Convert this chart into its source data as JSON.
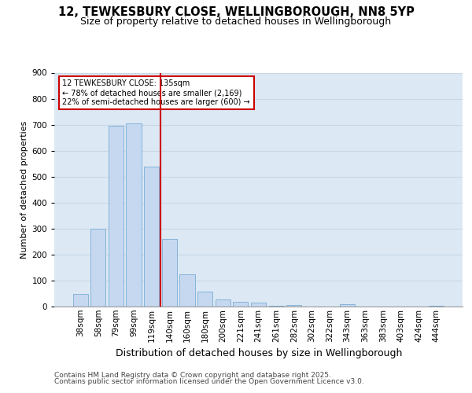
{
  "title_line1": "12, TEWKESBURY CLOSE, WELLINGBOROUGH, NN8 5YP",
  "title_line2": "Size of property relative to detached houses in Wellingborough",
  "xlabel": "Distribution of detached houses by size in Wellingborough",
  "ylabel": "Number of detached properties",
  "categories": [
    "38sqm",
    "58sqm",
    "79sqm",
    "99sqm",
    "119sqm",
    "140sqm",
    "160sqm",
    "180sqm",
    "200sqm",
    "221sqm",
    "241sqm",
    "261sqm",
    "282sqm",
    "302sqm",
    "322sqm",
    "343sqm",
    "363sqm",
    "383sqm",
    "403sqm",
    "424sqm",
    "444sqm"
  ],
  "values": [
    47,
    300,
    695,
    705,
    537,
    260,
    125,
    57,
    27,
    17,
    15,
    2,
    5,
    0,
    0,
    8,
    0,
    0,
    0,
    0,
    3
  ],
  "bar_color": "#c5d8f0",
  "bar_edge_color": "#7aadd4",
  "vline_x": 4.5,
  "vline_color": "#cc0000",
  "annotation_text": "12 TEWKESBURY CLOSE: 135sqm\n← 78% of detached houses are smaller (2,169)\n22% of semi-detached houses are larger (600) →",
  "annotation_box_color": "#cc0000",
  "ylim": [
    0,
    900
  ],
  "yticks": [
    0,
    100,
    200,
    300,
    400,
    500,
    600,
    700,
    800,
    900
  ],
  "grid_color": "#c8d8e8",
  "background_color": "#dce8f4",
  "footer_line1": "Contains HM Land Registry data © Crown copyright and database right 2025.",
  "footer_line2": "Contains public sector information licensed under the Open Government Licence v3.0.",
  "title_fontsize": 10.5,
  "subtitle_fontsize": 9,
  "xlabel_fontsize": 9,
  "ylabel_fontsize": 8,
  "tick_fontsize": 7.5,
  "footer_fontsize": 6.5
}
